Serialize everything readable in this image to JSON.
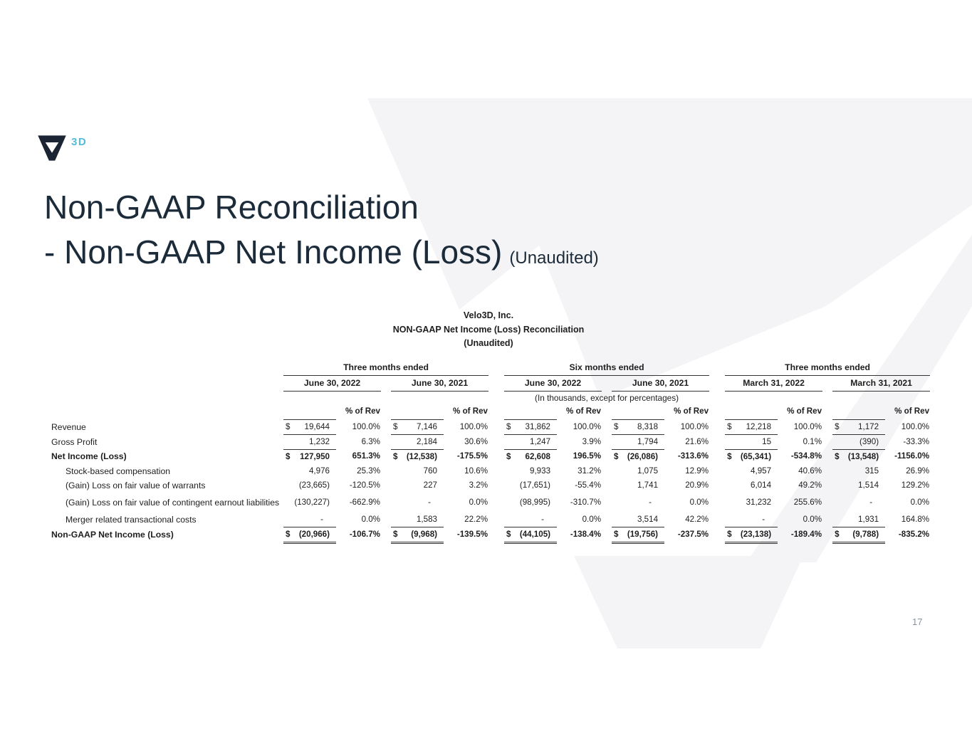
{
  "brand": {
    "logo_text": "3D"
  },
  "title": {
    "line1": "Non-GAAP Reconciliation",
    "line2": "- Non-GAAP Net Income (Loss)",
    "unaudited": "(Unaudited)"
  },
  "page_number": "17",
  "colors": {
    "title_navy": "#1c2b3a",
    "logo_navy": "#1a2433",
    "brand_blue": "#52bcdb",
    "watermark_gray": "#f4f4f6",
    "table_rule": "#333333"
  },
  "table": {
    "title_lines": [
      "Velo3D, Inc.",
      "NON-GAAP Net Income (Loss) Reconciliation",
      "(Unaudited)"
    ],
    "note": "(In thousands, except for percentages)",
    "pct_header": "% of Rev",
    "groups": [
      {
        "label": "Three months ended",
        "periods": [
          "June 30, 2022",
          "June 30, 2021"
        ]
      },
      {
        "label": "Six months ended",
        "periods": [
          "June 30, 2022",
          "June 30, 2021"
        ]
      },
      {
        "label": "Three months ended",
        "periods": [
          "March 31, 2022",
          "March 31, 2021"
        ]
      }
    ],
    "rows": [
      {
        "label": "Revenue",
        "indent": false,
        "bold": false,
        "rule": "single",
        "cells": [
          {
            "cur": "$",
            "amt": "19,644",
            "pct": "100.0%"
          },
          {
            "cur": "$",
            "amt": "7,146",
            "pct": "100.0%"
          },
          {
            "cur": "$",
            "amt": "31,862",
            "pct": "100.0%"
          },
          {
            "cur": "$",
            "amt": "8,318",
            "pct": "100.0%"
          },
          {
            "cur": "$",
            "amt": "12,218",
            "pct": "100.0%"
          },
          {
            "cur": "$",
            "amt": "1,172",
            "pct": "100.0%"
          }
        ]
      },
      {
        "label": "Gross Profit",
        "indent": false,
        "bold": false,
        "rule": "single",
        "cells": [
          {
            "amt": "1,232",
            "pct": "6.3%"
          },
          {
            "amt": "2,184",
            "pct": "30.6%"
          },
          {
            "amt": "1,247",
            "pct": "3.9%"
          },
          {
            "amt": "1,794",
            "pct": "21.6%"
          },
          {
            "amt": "15",
            "pct": "0.1%"
          },
          {
            "amt": "(390)",
            "pct": "-33.3%"
          }
        ]
      },
      {
        "label": "Net Income (Loss)",
        "indent": false,
        "bold": true,
        "rule": null,
        "cells": [
          {
            "cur": "$",
            "amt": "127,950",
            "pct": "651.3%"
          },
          {
            "cur": "$",
            "amt": "(12,538)",
            "pct": "-175.5%"
          },
          {
            "cur": "$",
            "amt": "62,608",
            "pct": "196.5%"
          },
          {
            "cur": "$",
            "amt": "(26,086)",
            "pct": "-313.6%"
          },
          {
            "cur": "$",
            "amt": "(65,341)",
            "pct": "-534.8%"
          },
          {
            "cur": "$",
            "amt": "(13,548)",
            "pct": "-1156.0%"
          }
        ]
      },
      {
        "label": "Stock-based compensation",
        "indent": true,
        "bold": false,
        "rule": null,
        "cells": [
          {
            "amt": "4,976",
            "pct": "25.3%"
          },
          {
            "amt": "760",
            "pct": "10.6%"
          },
          {
            "amt": "9,933",
            "pct": "31.2%"
          },
          {
            "amt": "1,075",
            "pct": "12.9%"
          },
          {
            "amt": "4,957",
            "pct": "40.6%"
          },
          {
            "amt": "315",
            "pct": "26.9%"
          }
        ]
      },
      {
        "label": "(Gain) Loss on fair value of warrants",
        "indent": true,
        "bold": false,
        "rule": null,
        "cells": [
          {
            "amt": "(23,665)",
            "pct": "-120.5%"
          },
          {
            "amt": "227",
            "pct": "3.2%"
          },
          {
            "amt": "(17,651)",
            "pct": "-55.4%"
          },
          {
            "amt": "1,741",
            "pct": "20.9%"
          },
          {
            "amt": "6,014",
            "pct": "49.2%"
          },
          {
            "amt": "1,514",
            "pct": "129.2%"
          }
        ]
      },
      {
        "label": "(Gain) Loss on fair value of contingent earnout liabilities",
        "indent": true,
        "bold": false,
        "rule": null,
        "cells": [
          {
            "amt": "(130,227)",
            "pct": "-662.9%"
          },
          {
            "amt": "-",
            "pct": "0.0%"
          },
          {
            "amt": "(98,995)",
            "pct": "-310.7%"
          },
          {
            "amt": "-",
            "pct": "0.0%"
          },
          {
            "amt": "31,232",
            "pct": "255.6%"
          },
          {
            "amt": "-",
            "pct": "0.0%"
          }
        ]
      },
      {
        "label": "Merger related transactional costs",
        "indent": true,
        "bold": false,
        "rule": "single",
        "cells": [
          {
            "amt": "-",
            "pct": "0.0%"
          },
          {
            "amt": "1,583",
            "pct": "22.2%"
          },
          {
            "amt": "-",
            "pct": "0.0%"
          },
          {
            "amt": "3,514",
            "pct": "42.2%"
          },
          {
            "amt": "-",
            "pct": "0.0%"
          },
          {
            "amt": "1,931",
            "pct": "164.8%"
          }
        ]
      },
      {
        "label": "Non-GAAP Net Income (Loss)",
        "indent": false,
        "bold": true,
        "rule": "double",
        "cells": [
          {
            "cur": "$",
            "amt": "(20,966)",
            "pct": "-106.7%"
          },
          {
            "cur": "$",
            "amt": "(9,968)",
            "pct": "-139.5%"
          },
          {
            "cur": "$",
            "amt": "(44,105)",
            "pct": "-138.4%"
          },
          {
            "cur": "$",
            "amt": "(19,756)",
            "pct": "-237.5%"
          },
          {
            "cur": "$",
            "amt": "(23,138)",
            "pct": "-189.4%"
          },
          {
            "cur": "$",
            "amt": "(9,788)",
            "pct": "-835.2%"
          }
        ]
      }
    ]
  }
}
